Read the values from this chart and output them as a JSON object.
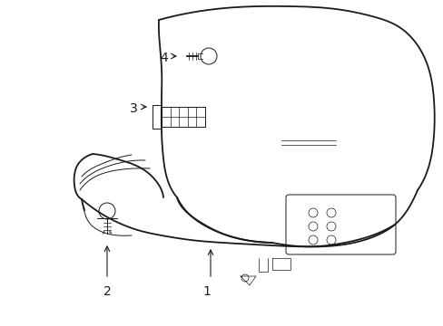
{
  "bg_color": "#ffffff",
  "line_color": "#1a1a1a",
  "lw_main": 1.3,
  "lw_thin": 0.7,
  "lw_detail": 0.5,
  "label_fs": 10,
  "fig_w": 4.89,
  "fig_h": 3.6,
  "dpi": 100
}
